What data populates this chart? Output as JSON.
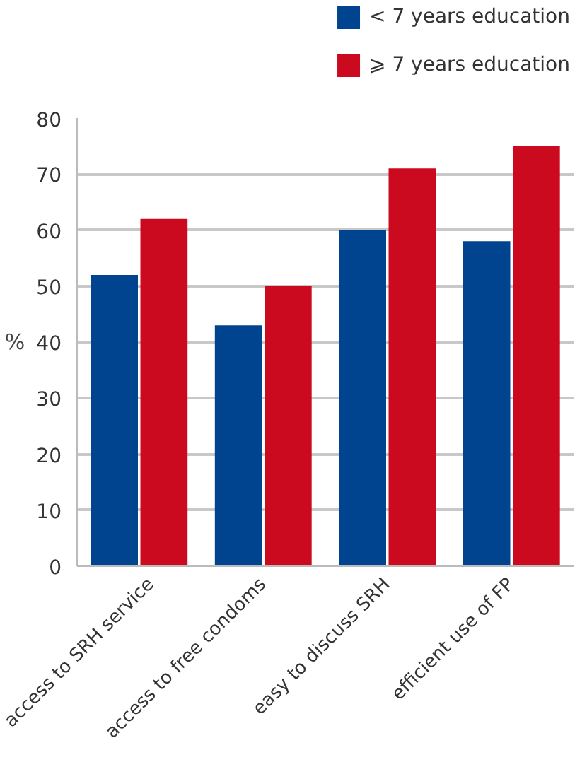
{
  "chart_data": {
    "type": "bar",
    "ylabel": "%",
    "categories": [
      "access to SRH service",
      "access to free condoms",
      "easy to discuss SRH",
      "efficient use of FP"
    ],
    "series": [
      {
        "name": "< 7 years education",
        "color": "#00448f",
        "values": [
          52,
          43,
          60,
          58
        ]
      },
      {
        "name": "⩾ 7 years education",
        "color": "#cc0a1f",
        "values": [
          62,
          50,
          71,
          75
        ]
      }
    ],
    "ylim": [
      0,
      80
    ],
    "yticks": [
      0,
      10,
      20,
      30,
      40,
      50,
      60,
      70,
      80
    ],
    "grid": "y",
    "legend": "top right"
  }
}
